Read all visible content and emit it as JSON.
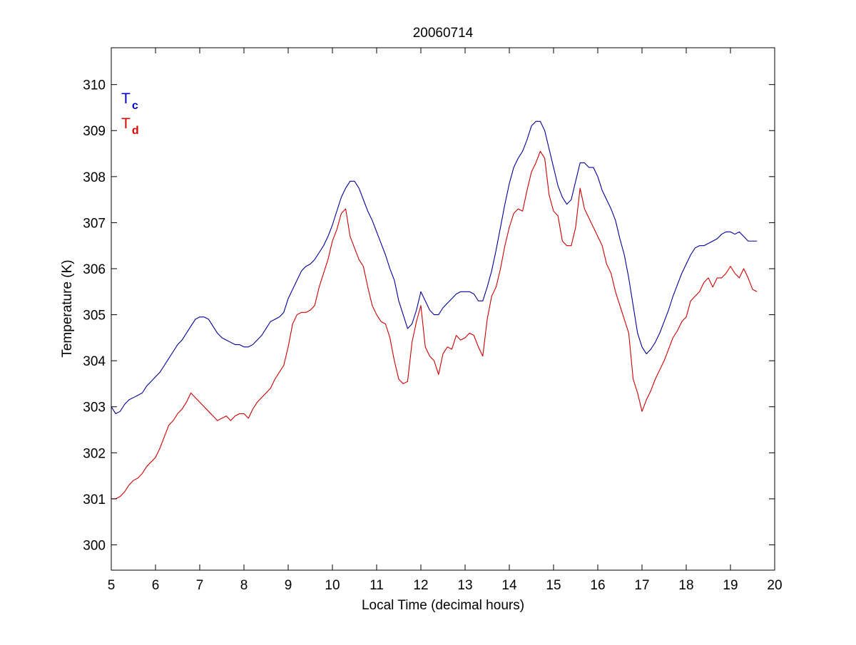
{
  "chart_data": {
    "type": "line",
    "title": "20060714",
    "xlabel": "Local Time (decimal hours)",
    "ylabel": "Temperature (K)",
    "xlim": [
      5,
      20
    ],
    "ylim": [
      299.45,
      310.8
    ],
    "xticks": [
      5,
      6,
      7,
      8,
      9,
      10,
      11,
      12,
      13,
      14,
      15,
      16,
      17,
      18,
      19,
      20
    ],
    "yticks": [
      300,
      301,
      302,
      303,
      304,
      305,
      306,
      307,
      308,
      309,
      310
    ],
    "xtick_labels": [
      "5",
      "6",
      "7",
      "8",
      "9",
      "10",
      "11",
      "12",
      "13",
      "14",
      "15",
      "16",
      "17",
      "18",
      "19",
      "20"
    ],
    "ytick_labels": [
      "300",
      "301",
      "302",
      "303",
      "304",
      "305",
      "306",
      "307",
      "308",
      "309",
      "310"
    ],
    "grid": false,
    "legend_position": "top-left",
    "legend": [
      {
        "main": "T",
        "sub": "c",
        "color": "#0000cc"
      },
      {
        "main": "T",
        "sub": "d",
        "color": "#dd0000"
      }
    ],
    "series": [
      {
        "color": "#000099",
        "x": [
          5.0,
          5.1,
          5.2,
          5.3,
          5.4,
          5.5,
          5.6,
          5.7,
          5.8,
          5.9,
          6.0,
          6.1,
          6.2,
          6.3,
          6.4,
          6.5,
          6.6,
          6.7,
          6.8,
          6.9,
          7.0,
          7.1,
          7.2,
          7.3,
          7.4,
          7.5,
          7.6,
          7.7,
          7.8,
          7.9,
          8.0,
          8.1,
          8.2,
          8.3,
          8.4,
          8.5,
          8.6,
          8.7,
          8.8,
          8.9,
          9.0,
          9.1,
          9.2,
          9.3,
          9.4,
          9.5,
          9.6,
          9.7,
          9.8,
          9.9,
          10.0,
          10.1,
          10.2,
          10.3,
          10.4,
          10.5,
          10.6,
          10.7,
          10.8,
          10.9,
          11.0,
          11.1,
          11.2,
          11.3,
          11.4,
          11.5,
          11.6,
          11.7,
          11.8,
          11.9,
          12.0,
          12.1,
          12.2,
          12.3,
          12.4,
          12.5,
          12.6,
          12.7,
          12.8,
          12.9,
          13.0,
          13.1,
          13.2,
          13.3,
          13.4,
          13.5,
          13.6,
          13.7,
          13.8,
          13.9,
          14.0,
          14.1,
          14.2,
          14.3,
          14.4,
          14.5,
          14.6,
          14.7,
          14.8,
          14.9,
          15.0,
          15.1,
          15.2,
          15.3,
          15.4,
          15.5,
          15.6,
          15.7,
          15.8,
          15.9,
          16.0,
          16.1,
          16.2,
          16.3,
          16.4,
          16.5,
          16.6,
          16.7,
          16.8,
          16.9,
          17.0,
          17.1,
          17.2,
          17.3,
          17.4,
          17.5,
          17.6,
          17.7,
          17.8,
          17.9,
          18.0,
          18.1,
          18.2,
          18.3,
          18.4,
          18.5,
          18.6,
          18.7,
          18.8,
          18.9,
          19.0,
          19.1,
          19.2,
          19.3,
          19.4,
          19.5,
          19.6
        ],
        "y": [
          303.0,
          302.85,
          302.9,
          303.05,
          303.15,
          303.2,
          303.25,
          303.3,
          303.45,
          303.55,
          303.65,
          303.75,
          303.9,
          304.05,
          304.2,
          304.35,
          304.45,
          304.6,
          304.75,
          304.9,
          304.95,
          304.95,
          304.9,
          304.75,
          304.6,
          304.5,
          304.45,
          304.4,
          304.35,
          304.35,
          304.3,
          304.3,
          304.35,
          304.45,
          304.55,
          304.7,
          304.85,
          304.9,
          304.95,
          305.05,
          305.35,
          305.55,
          305.75,
          305.95,
          306.05,
          306.1,
          306.2,
          306.35,
          306.5,
          306.7,
          306.95,
          307.25,
          307.55,
          307.75,
          307.9,
          307.9,
          307.75,
          307.5,
          307.25,
          307.05,
          306.8,
          306.55,
          306.3,
          306.0,
          305.75,
          305.3,
          305.0,
          304.7,
          304.8,
          305.1,
          305.5,
          305.3,
          305.1,
          305.0,
          305.0,
          305.15,
          305.25,
          305.35,
          305.45,
          305.5,
          305.5,
          305.5,
          305.45,
          305.3,
          305.3,
          305.6,
          305.95,
          306.4,
          306.9,
          307.4,
          307.85,
          308.2,
          308.4,
          308.55,
          308.8,
          309.1,
          309.2,
          309.2,
          309.0,
          308.6,
          308.2,
          307.8,
          307.55,
          307.4,
          307.5,
          307.9,
          308.3,
          308.3,
          308.2,
          308.2,
          308.0,
          307.7,
          307.5,
          307.3,
          307.05,
          306.65,
          306.3,
          305.8,
          305.2,
          304.6,
          304.3,
          304.15,
          304.25,
          304.4,
          304.6,
          304.85,
          305.1,
          305.4,
          305.65,
          305.9,
          306.1,
          306.3,
          306.45,
          306.5,
          306.5,
          306.55,
          306.6,
          306.65,
          306.75,
          306.8,
          306.8,
          306.75,
          306.8,
          306.7,
          306.6,
          306.6,
          306.6
        ]
      },
      {
        "color": "#cc0000",
        "x": [
          5.0,
          5.1,
          5.2,
          5.3,
          5.4,
          5.5,
          5.6,
          5.7,
          5.8,
          5.9,
          6.0,
          6.1,
          6.2,
          6.3,
          6.4,
          6.5,
          6.6,
          6.7,
          6.8,
          6.9,
          7.0,
          7.1,
          7.2,
          7.3,
          7.4,
          7.5,
          7.6,
          7.7,
          7.8,
          7.9,
          8.0,
          8.1,
          8.2,
          8.3,
          8.4,
          8.5,
          8.6,
          8.7,
          8.8,
          8.9,
          9.0,
          9.1,
          9.2,
          9.3,
          9.4,
          9.5,
          9.6,
          9.7,
          9.8,
          9.9,
          10.0,
          10.1,
          10.2,
          10.3,
          10.4,
          10.5,
          10.6,
          10.7,
          10.8,
          10.9,
          11.0,
          11.1,
          11.2,
          11.3,
          11.4,
          11.5,
          11.6,
          11.7,
          11.8,
          11.9,
          12.0,
          12.1,
          12.2,
          12.3,
          12.4,
          12.5,
          12.6,
          12.7,
          12.8,
          12.9,
          13.0,
          13.1,
          13.2,
          13.3,
          13.4,
          13.5,
          13.6,
          13.7,
          13.8,
          13.9,
          14.0,
          14.1,
          14.2,
          14.3,
          14.4,
          14.5,
          14.6,
          14.7,
          14.8,
          14.9,
          15.0,
          15.1,
          15.2,
          15.3,
          15.4,
          15.5,
          15.6,
          15.7,
          15.8,
          15.9,
          16.0,
          16.1,
          16.2,
          16.3,
          16.4,
          16.5,
          16.6,
          16.7,
          16.8,
          16.9,
          17.0,
          17.1,
          17.2,
          17.3,
          17.4,
          17.5,
          17.6,
          17.7,
          17.8,
          17.9,
          18.0,
          18.1,
          18.2,
          18.3,
          18.4,
          18.5,
          18.6,
          18.7,
          18.8,
          18.9,
          19.0,
          19.1,
          19.2,
          19.3,
          19.4,
          19.5,
          19.6
        ],
        "y": [
          301.0,
          301.0,
          301.05,
          301.15,
          301.3,
          301.4,
          301.45,
          301.55,
          301.7,
          301.8,
          301.9,
          302.1,
          302.35,
          302.6,
          302.7,
          302.85,
          302.95,
          303.1,
          303.3,
          303.2,
          303.1,
          303.0,
          302.9,
          302.8,
          302.7,
          302.75,
          302.8,
          302.7,
          302.8,
          302.85,
          302.85,
          302.75,
          302.95,
          303.1,
          303.2,
          303.3,
          303.4,
          303.6,
          303.75,
          303.9,
          304.3,
          304.8,
          305.0,
          305.05,
          305.05,
          305.1,
          305.2,
          305.6,
          305.9,
          306.2,
          306.6,
          306.85,
          307.2,
          307.3,
          306.7,
          306.45,
          306.2,
          306.05,
          305.6,
          305.2,
          305.0,
          304.85,
          304.8,
          304.5,
          304.0,
          303.6,
          303.5,
          303.55,
          304.4,
          304.85,
          305.2,
          304.3,
          304.1,
          304.0,
          303.7,
          304.15,
          304.3,
          304.25,
          304.55,
          304.45,
          304.5,
          304.6,
          304.55,
          304.3,
          304.1,
          304.9,
          305.4,
          305.6,
          306.0,
          306.5,
          306.9,
          307.2,
          307.3,
          307.25,
          307.7,
          308.1,
          308.3,
          308.55,
          308.4,
          307.6,
          307.25,
          307.15,
          306.6,
          306.5,
          306.5,
          306.9,
          307.75,
          307.3,
          307.1,
          306.9,
          306.7,
          306.5,
          306.1,
          305.9,
          305.5,
          305.2,
          304.9,
          304.6,
          303.6,
          303.3,
          302.9,
          303.15,
          303.35,
          303.6,
          303.8,
          304.0,
          304.25,
          304.5,
          304.65,
          304.85,
          304.95,
          305.3,
          305.4,
          305.5,
          305.7,
          305.8,
          305.6,
          305.8,
          305.8,
          305.9,
          306.05,
          305.9,
          305.8,
          306.0,
          305.8,
          305.55,
          305.5
        ]
      }
    ]
  }
}
